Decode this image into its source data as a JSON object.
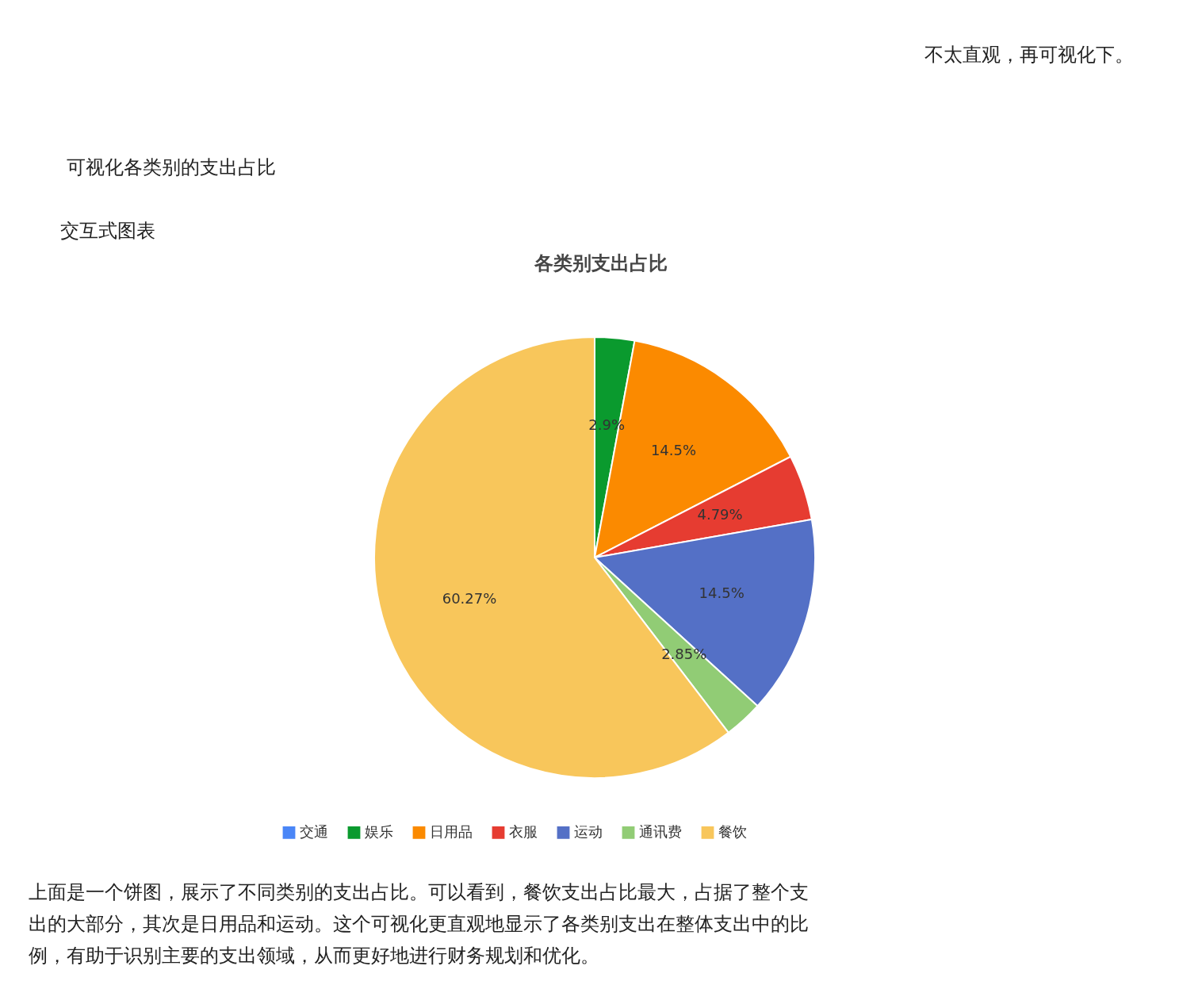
{
  "chart_data": {
    "type": "pie",
    "title": "各类别支出占比",
    "categories": [
      "交通",
      "娱乐",
      "日用品",
      "衣服",
      "运动",
      "通讯费",
      "餐饮"
    ],
    "values": [
      null,
      2.9,
      14.5,
      4.79,
      14.5,
      2.85,
      60.27
    ],
    "value_labels": [
      null,
      "2.9%",
      "14.5%",
      "4.79%",
      "14.5%",
      "2.85%",
      "60.27%"
    ],
    "colors": [
      "#4a86f7",
      "#0a9a2e",
      "#fb8a00",
      "#e63c31",
      "#5470c6",
      "#91cc75",
      "#f8c65b"
    ],
    "legend": "bottom",
    "annotations": [
      "不太直观，再可视化下。",
      "可视化各类别的支出占比",
      "交互式图表",
      "上面是一个饼图，展示了不同类别的支出占比。可以看到，餐饮支出占比最大，占据了整个支出的大部分，其次是日用品和运动。这个可视化更直观地显示了各类别支出在整体支出中的比例，有助于识别主要的支出领域，从而更好地进行财务规划和优化。"
    ]
  }
}
